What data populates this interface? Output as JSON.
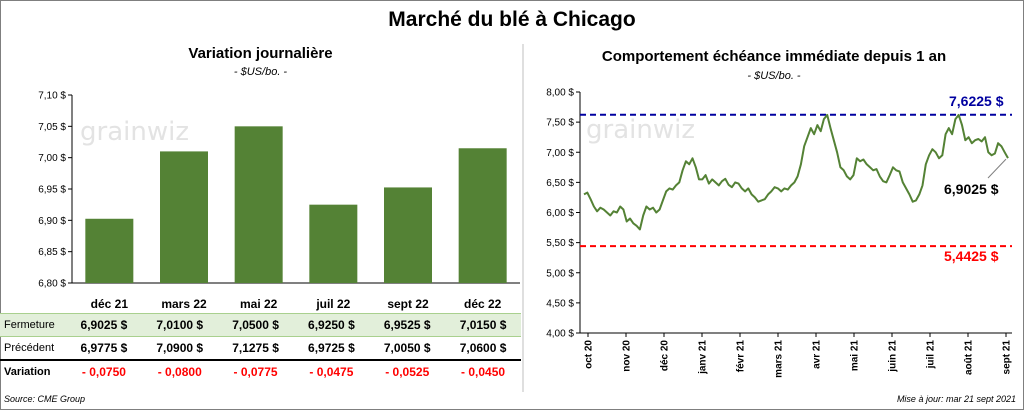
{
  "main_title": "Marché du blé à Chicago",
  "left": {
    "title": "Variation journalière",
    "unit": "- $US/bo. -"
  },
  "right": {
    "title": "Comportement échéance immédiate depuis 1 an",
    "unit": "- $US/bo. -",
    "high_label": "7,6225 $",
    "low_label": "5,4425 $",
    "last_label": "6,9025 $"
  },
  "watermark": "grainwiz",
  "table": {
    "rows": [
      {
        "label": "Fermeture",
        "cells": [
          "6,9025 $",
          "7,0100 $",
          "7,0500 $",
          "6,9250 $",
          "6,9525 $",
          "7,0150 $"
        ]
      },
      {
        "label": "Précédent",
        "cells": [
          "6,9775 $",
          "7,0900 $",
          "7,1275 $",
          "6,9725 $",
          "7,0050 $",
          "7,0600 $"
        ]
      },
      {
        "label": "Variation",
        "cells": [
          "- 0,0750",
          "- 0,0800",
          "- 0,0775",
          "- 0,0475",
          "- 0,0525",
          "- 0,0450"
        ]
      }
    ]
  },
  "footer": {
    "source": "Source: CME Group",
    "updated": "Mise à jour: mar 21 sept 2021"
  },
  "colors": {
    "bar": "#548235",
    "line": "#548235",
    "high": "#0000a0",
    "low": "#ff0000",
    "table_highlight": "#e2efda"
  },
  "chart_data": [
    {
      "type": "bar",
      "title": "Variation journalière",
      "ylabel": "$US/bo.",
      "categories": [
        "déc 21",
        "mars 22",
        "mai 22",
        "juil 22",
        "sept 22",
        "déc 22"
      ],
      "values": [
        6.9025,
        7.01,
        7.05,
        6.925,
        6.9525,
        7.015
      ],
      "ylim": [
        6.8,
        7.1
      ],
      "yticks": [
        6.8,
        6.85,
        6.9,
        6.95,
        7.0,
        7.05,
        7.1
      ],
      "ytick_labels": [
        "6,80 $",
        "6,85 $",
        "6,90 $",
        "6,95 $",
        "7,00 $",
        "7,05 $",
        "7,10 $"
      ],
      "grid": false
    },
    {
      "type": "line",
      "title": "Comportement échéance immédiate depuis 1 an",
      "ylabel": "$US/bo.",
      "ylim": [
        4.0,
        8.0
      ],
      "yticks": [
        4.0,
        4.5,
        5.0,
        5.5,
        6.0,
        6.5,
        7.0,
        7.5,
        8.0
      ],
      "ytick_labels": [
        "4,00 $",
        "4,50 $",
        "5,00 $",
        "5,50 $",
        "6,00 $",
        "6,50 $",
        "7,00 $",
        "7,50 $",
        "8,00 $"
      ],
      "xticks": [
        "oct 20",
        "nov 20",
        "déc 20",
        "janv 21",
        "févr 21",
        "mars 21",
        "avr 21",
        "mai 21",
        "juin 21",
        "juil 21",
        "août 21",
        "sept 21"
      ],
      "reference_lines": [
        {
          "value": 7.6225,
          "label": "7,6225 $",
          "color": "#0000a0"
        },
        {
          "value": 5.4425,
          "label": "5,4425 $",
          "color": "#ff0000"
        }
      ],
      "last_value": 6.9025,
      "series": [
        {
          "values": [
            6.3,
            6.33,
            6.22,
            6.1,
            6.02,
            6.08,
            6.05,
            6.0,
            5.95,
            6.02,
            6.0,
            6.1,
            6.05,
            5.85,
            5.9,
            5.82,
            5.78,
            5.72,
            5.95,
            6.1,
            6.05,
            6.08,
            6.0,
            6.05,
            6.2,
            6.35,
            6.4,
            6.38,
            6.45,
            6.5,
            6.7,
            6.85,
            6.8,
            6.9,
            6.75,
            6.55,
            6.55,
            6.62,
            6.48,
            6.55,
            6.5,
            6.45,
            6.52,
            6.56,
            6.46,
            6.42,
            6.5,
            6.48,
            6.4,
            6.35,
            6.4,
            6.3,
            6.25,
            6.18,
            6.2,
            6.22,
            6.3,
            6.35,
            6.42,
            6.4,
            6.35,
            6.4,
            6.38,
            6.45,
            6.5,
            6.6,
            6.8,
            7.1,
            7.25,
            7.4,
            7.3,
            7.45,
            7.35,
            7.55,
            7.62,
            7.4,
            7.2,
            7.0,
            6.75,
            6.7,
            6.6,
            6.55,
            6.62,
            6.9,
            6.85,
            6.88,
            6.8,
            6.75,
            6.7,
            6.72,
            6.6,
            6.52,
            6.5,
            6.62,
            6.75,
            6.7,
            6.68,
            6.5,
            6.4,
            6.3,
            6.18,
            6.2,
            6.3,
            6.45,
            6.8,
            6.95,
            7.05,
            7.0,
            6.9,
            6.95,
            7.3,
            7.4,
            7.3,
            7.55,
            7.62,
            7.45,
            7.2,
            7.25,
            7.15,
            7.2,
            7.22,
            7.18,
            7.25,
            7.0,
            6.95,
            6.98,
            7.15,
            7.1,
            7.0,
            6.9025
          ]
        }
      ]
    }
  ]
}
